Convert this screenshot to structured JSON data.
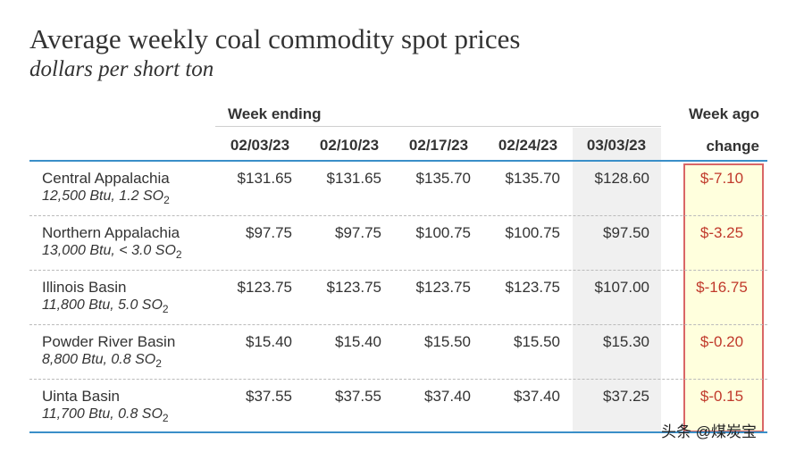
{
  "chart_data": {
    "type": "table",
    "title": "Average weekly coal commodity spot prices",
    "subtitle": "dollars per short ton",
    "group_header": "Week ending",
    "change_header": [
      "Week ago",
      "change"
    ],
    "columns": [
      "02/03/23",
      "02/10/23",
      "02/17/23",
      "02/24/23",
      "03/03/23"
    ],
    "rows": [
      {
        "name": "Central Appalachia",
        "spec": "12,500 Btu, 1.2 SO",
        "spec_sub": "2",
        "values": [
          "$131.65",
          "$131.65",
          "$135.70",
          "$135.70",
          "$128.60"
        ],
        "change": "$-7.10"
      },
      {
        "name": "Northern Appalachia",
        "spec": "13,000 Btu, < 3.0 SO",
        "spec_sub": "2",
        "values": [
          "$97.75",
          "$97.75",
          "$100.75",
          "$100.75",
          "$97.50"
        ],
        "change": "$-3.25"
      },
      {
        "name": "Illinois Basin",
        "spec": "11,800 Btu, 5.0 SO",
        "spec_sub": "2",
        "values": [
          "$123.75",
          "$123.75",
          "$123.75",
          "$123.75",
          "$107.00"
        ],
        "change": "$-16.75"
      },
      {
        "name": "Powder River Basin",
        "spec": "8,800 Btu, 0.8 SO",
        "spec_sub": "2",
        "values": [
          "$15.40",
          "$15.40",
          "$15.50",
          "$15.50",
          "$15.30"
        ],
        "change": "$-0.20"
      },
      {
        "name": "Uinta Basin",
        "spec": "11,700 Btu, 0.8 SO",
        "spec_sub": "2",
        "values": [
          "$37.55",
          "$37.55",
          "$37.40",
          "$37.40",
          "$37.25"
        ],
        "change": "$-0.15"
      }
    ]
  },
  "colors": {
    "change_text": "#c0392b",
    "accent_line": "#3a8fc8",
    "highlight_box_border": "#d96666",
    "highlight_box_fill": "#ffffdd",
    "latest_week_fill": "#f0f0f0"
  },
  "watermark": "头条 @煤炭宝"
}
